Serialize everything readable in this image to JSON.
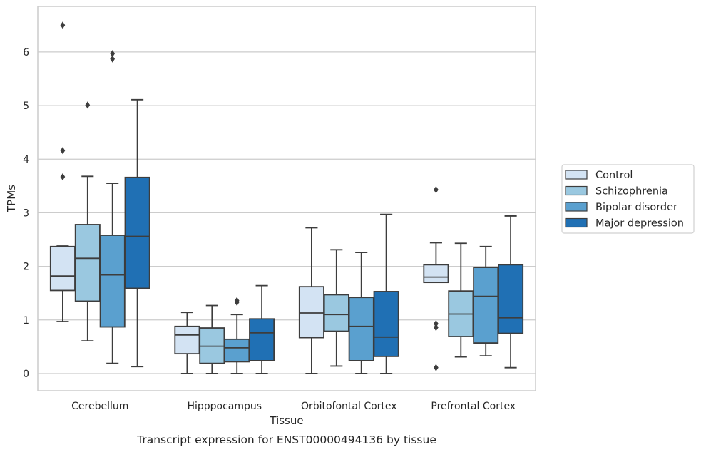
{
  "chart_data": {
    "type": "boxplot",
    "title": "",
    "caption": "Transcript expression for ENST00000494136 by tissue",
    "xlabel": "Tissue",
    "ylabel": "TPMs",
    "ylim": [
      -0.32,
      6.85
    ],
    "yticks": [
      0,
      1,
      2,
      3,
      4,
      5,
      6
    ],
    "grid": "horizontal",
    "legend_position": "right",
    "categories": [
      "Cerebellum",
      "Hipppocampus",
      "Orbitofontal Cortex",
      "Prefrontal Cortex"
    ],
    "series": [
      {
        "name": "Control",
        "color": "#d3e3f3",
        "boxes": [
          {
            "whislo": 0.97,
            "q1": 1.55,
            "med": 1.82,
            "q3": 2.37,
            "whishi": 2.38,
            "fliers": [
              3.67,
              4.16,
              6.5
            ]
          },
          {
            "whislo": 0.0,
            "q1": 0.37,
            "med": 0.72,
            "q3": 0.88,
            "whishi": 1.14,
            "fliers": []
          },
          {
            "whislo": 0.0,
            "q1": 0.67,
            "med": 1.13,
            "q3": 1.62,
            "whishi": 2.72,
            "fliers": []
          },
          {
            "whislo": 1.7,
            "q1": 1.7,
            "med": 1.8,
            "q3": 2.03,
            "whishi": 2.44,
            "fliers": [
              0.11,
              0.86,
              0.93,
              3.43
            ]
          }
        ]
      },
      {
        "name": "Schizophrenia",
        "color": "#9ac8e0",
        "boxes": [
          {
            "whislo": 0.61,
            "q1": 1.35,
            "med": 2.15,
            "q3": 2.78,
            "whishi": 3.68,
            "fliers": [
              5.01
            ]
          },
          {
            "whislo": 0.0,
            "q1": 0.19,
            "med": 0.51,
            "q3": 0.85,
            "whishi": 1.27,
            "fliers": []
          },
          {
            "whislo": 0.14,
            "q1": 0.79,
            "med": 1.1,
            "q3": 1.47,
            "whishi": 2.31,
            "fliers": []
          },
          {
            "whislo": 0.31,
            "q1": 0.69,
            "med": 1.11,
            "q3": 1.54,
            "whishi": 2.43,
            "fliers": []
          }
        ]
      },
      {
        "name": "Bipolar disorder",
        "color": "#5aa0cf",
        "boxes": [
          {
            "whislo": 0.19,
            "q1": 0.87,
            "med": 1.84,
            "q3": 2.58,
            "whishi": 3.55,
            "fliers": [
              5.87,
              5.97
            ]
          },
          {
            "whislo": 0.0,
            "q1": 0.22,
            "med": 0.48,
            "q3": 0.64,
            "whishi": 1.1,
            "fliers": [
              1.33,
              1.36
            ]
          },
          {
            "whislo": 0.0,
            "q1": 0.24,
            "med": 0.88,
            "q3": 1.42,
            "whishi": 2.26,
            "fliers": []
          },
          {
            "whislo": 0.33,
            "q1": 0.57,
            "med": 1.44,
            "q3": 1.98,
            "whishi": 2.37,
            "fliers": []
          }
        ]
      },
      {
        "name": "Major depression",
        "color": "#2070b4",
        "boxes": [
          {
            "whislo": 0.13,
            "q1": 1.59,
            "med": 2.56,
            "q3": 3.66,
            "whishi": 5.11,
            "fliers": []
          },
          {
            "whislo": 0.0,
            "q1": 0.24,
            "med": 0.76,
            "q3": 1.02,
            "whishi": 1.64,
            "fliers": []
          },
          {
            "whislo": 0.0,
            "q1": 0.32,
            "med": 0.68,
            "q3": 1.53,
            "whishi": 2.97,
            "fliers": []
          },
          {
            "whislo": 0.11,
            "q1": 0.75,
            "med": 1.04,
            "q3": 2.03,
            "whishi": 2.94,
            "fliers": []
          }
        ]
      }
    ]
  }
}
